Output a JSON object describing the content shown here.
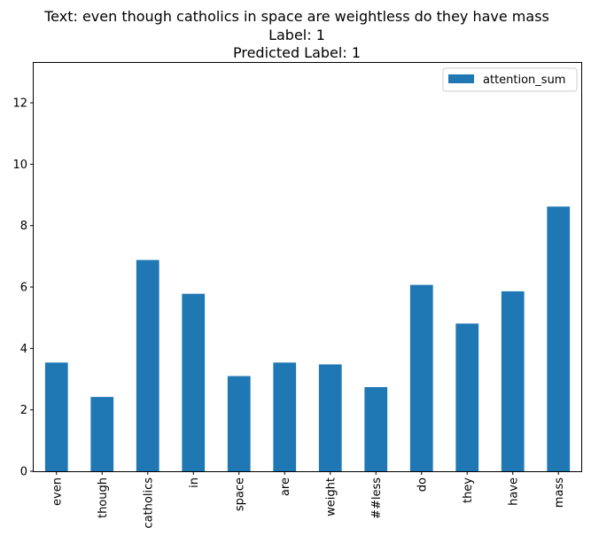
{
  "title_lines": [
    "Text: even though catholics in space are weightless do they have mass",
    "Label: 1",
    "Predicted Label: 1"
  ],
  "chart_data": {
    "type": "bar",
    "title": "Text: even though catholics in space are weightless do they have mass\nLabel: 1\nPredicted Label: 1",
    "xlabel": "",
    "ylabel": "",
    "categories": [
      "even",
      "though",
      "catholics",
      "in",
      "space",
      "are",
      "weight",
      "##less",
      "do",
      "they",
      "have",
      "mass"
    ],
    "series": [
      {
        "name": "attention_sum",
        "values": [
          3.54,
          2.42,
          6.88,
          5.78,
          3.1,
          3.54,
          3.48,
          2.74,
          6.07,
          4.81,
          5.86,
          8.62
        ],
        "color": "#1f77b4"
      }
    ],
    "ylim": [
      0,
      13.3
    ],
    "yticks": [
      0,
      2,
      4,
      6,
      8,
      10,
      12
    ],
    "grid": false,
    "legend": "top-right"
  }
}
